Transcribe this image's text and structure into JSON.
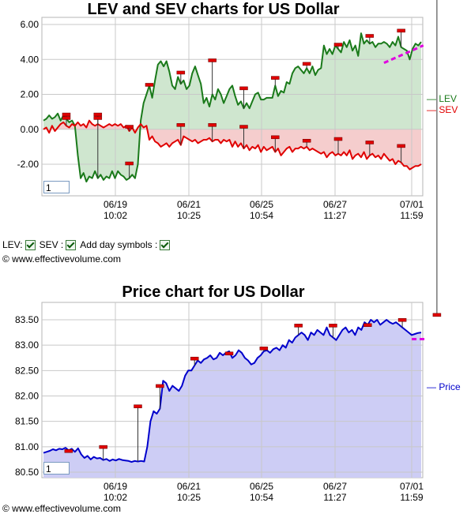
{
  "chart_data": [
    {
      "type": "line",
      "title": "LEV and SEV charts for US Dollar",
      "x_ticks": [
        {
          "date": "06/19",
          "time": "10:02"
        },
        {
          "date": "06/21",
          "time": "10:25"
        },
        {
          "date": "06/25",
          "time": "10:54"
        },
        {
          "date": "06/27",
          "time": "11:27"
        },
        {
          "date": "07/01",
          "time": "11:59"
        }
      ],
      "y_ticks": [
        "6.00",
        "4.00",
        "2.00",
        "0.00",
        "-2.00"
      ],
      "ylim": [
        -3.05,
        6.05
      ],
      "grid": true,
      "legend_position": "right",
      "series": [
        {
          "name": "LEV",
          "color": "#1a7a1a",
          "fill": "#cfe6cf",
          "values": [
            0.5,
            0.6,
            0.8,
            0.6,
            0.7,
            0.9,
            0.5,
            0.8,
            0.6,
            0.4,
            0.5,
            0.2,
            -1.5,
            -2.8,
            -2.5,
            -3.0,
            -2.7,
            -2.8,
            -2.4,
            -2.8,
            -2.6,
            -2.9,
            -2.7,
            -2.8,
            -2.4,
            -2.8,
            -2.4,
            -2.6,
            -2.7,
            -2.9,
            -2.8,
            -2.6,
            -2.8,
            -2.0,
            0.5,
            1.5,
            2.0,
            2.5,
            1.8,
            2.8,
            3.7,
            3.9,
            3.6,
            3.9,
            3.3,
            2.5,
            2.3,
            3.0,
            2.6,
            2.8,
            2.3,
            2.5,
            3.2,
            3.6,
            3.1,
            2.6,
            1.5,
            1.8,
            1.3,
            2.0,
            1.7,
            2.3,
            2.0,
            1.5,
            1.9,
            2.3,
            2.5,
            1.9,
            1.4,
            1.6,
            1.2,
            1.5,
            1.2,
            1.6,
            2.0,
            2.1,
            1.7,
            1.7,
            1.8,
            1.8,
            1.8,
            2.5,
            1.9,
            2.2,
            2.1,
            2.7,
            2.6,
            3.2,
            3.5,
            3.6,
            3.4,
            3.2,
            3.5,
            3.2,
            3.6,
            3.1,
            3.4,
            3.5,
            4.8,
            4.3,
            4.6,
            4.3,
            4.8,
            4.6,
            4.4,
            5.0,
            4.7,
            5.1,
            4.5,
            4.8,
            4.2,
            5.5,
            4.9,
            5.1,
            4.9,
            5.0,
            4.7,
            4.9,
            4.9,
            5.0,
            4.9,
            4.7,
            5.0,
            4.8,
            5.3,
            4.7,
            4.6,
            4.5,
            4.0,
            4.6,
            4.9,
            4.8,
            5.0
          ]
        },
        {
          "name": "SEV",
          "color": "#e00000",
          "fill": "#f5cdcd",
          "values": [
            0.0,
            0.1,
            -0.2,
            0.2,
            -0.1,
            0.1,
            0.3,
            0.4,
            0.2,
            0.1,
            0.3,
            0.2,
            0.4,
            0.2,
            0.3,
            0.1,
            0.5,
            0.3,
            0.2,
            0.3,
            0.2,
            0.1,
            0.2,
            0.3,
            0.2,
            0.3,
            0.2,
            0.3,
            0.1,
            0.2,
            -0.1,
            0.1,
            -0.2,
            0.1,
            0.3,
            0.1,
            0.2,
            -0.6,
            -0.4,
            -0.7,
            -0.8,
            -1.0,
            -0.9,
            -0.8,
            -1.0,
            -0.8,
            -0.7,
            -0.6,
            -0.9,
            -0.4,
            -0.5,
            -0.6,
            -0.7,
            -0.6,
            -0.8,
            -0.7,
            -0.6,
            -0.6,
            -0.5,
            -0.7,
            -0.6,
            -0.6,
            -0.8,
            -0.6,
            -0.7,
            -0.6,
            -1.0,
            -0.7,
            -1.0,
            -0.8,
            -1.1,
            -0.9,
            -1.2,
            -1.0,
            -1.1,
            -0.9,
            -1.3,
            -1.0,
            -1.2,
            -1.1,
            -1.0,
            -1.3,
            -1.1,
            -1.5,
            -1.3,
            -1.1,
            -1.0,
            -1.3,
            -1.1,
            -1.1,
            -1.0,
            -1.1,
            -1.0,
            -1.2,
            -1.1,
            -1.2,
            -1.3,
            -1.4,
            -1.3,
            -1.6,
            -1.4,
            -1.3,
            -1.5,
            -1.4,
            -1.5,
            -1.3,
            -1.5,
            -1.2,
            -1.7,
            -1.5,
            -1.4,
            -1.6,
            -1.3,
            -1.7,
            -1.5,
            -1.4,
            -1.6,
            -1.5,
            -1.7,
            -1.4,
            -1.6,
            -1.8,
            -1.7,
            -2.0,
            -1.8,
            -1.9,
            -2.1,
            -2.1,
            -2.3,
            -2.2,
            -2.1,
            -2.1,
            -2.0
          ]
        }
      ],
      "day_symbols_lev": [
        [
          8,
          0.8
        ],
        [
          19,
          0.8
        ],
        [
          30,
          -2.0
        ],
        [
          37,
          2.5
        ],
        [
          48,
          3.2
        ],
        [
          59,
          3.9
        ],
        [
          70,
          2.3
        ],
        [
          81,
          2.9
        ],
        [
          92,
          3.7
        ],
        [
          103,
          4.8
        ],
        [
          114,
          5.3
        ],
        [
          125,
          5.6
        ]
      ],
      "day_symbols_sev": [
        [
          8,
          0.6
        ],
        [
          19,
          0.6
        ],
        [
          30,
          0.1
        ],
        [
          48,
          0.2
        ],
        [
          59,
          0.2
        ],
        [
          70,
          0.1
        ],
        [
          81,
          -0.5
        ],
        [
          92,
          -0.7
        ],
        [
          103,
          -0.6
        ],
        [
          114,
          -0.8
        ],
        [
          125,
          -1.0
        ]
      ],
      "trend_marker_lev": {
        "from": [
          119,
          3.8
        ],
        "to": [
          130,
          4.8
        ]
      },
      "zoom_value": "1"
    },
    {
      "type": "line",
      "title": "Price chart for US Dollar",
      "x_ticks": [
        {
          "date": "06/19",
          "time": "10:02"
        },
        {
          "date": "06/21",
          "time": "10:25"
        },
        {
          "date": "06/25",
          "time": "10:54"
        },
        {
          "date": "06/27",
          "time": "11:27"
        },
        {
          "date": "07/01",
          "time": "11:59"
        }
      ],
      "y_ticks": [
        "83.50",
        "83.00",
        "82.50",
        "82.00",
        "81.50",
        "81.00",
        "80.50"
      ],
      "ylim": [
        80.42,
        83.62
      ],
      "grid": true,
      "legend_position": "right",
      "series": [
        {
          "name": "Price",
          "color": "#0000cc",
          "fill": "#cdcdf5",
          "values": [
            80.88,
            80.9,
            80.92,
            80.95,
            80.93,
            80.96,
            80.95,
            80.98,
            80.93,
            80.96,
            80.9,
            80.97,
            80.85,
            80.78,
            80.82,
            80.75,
            80.8,
            80.77,
            80.78,
            80.74,
            80.76,
            80.72,
            80.75,
            80.73,
            80.76,
            80.74,
            80.73,
            80.72,
            80.7,
            80.72,
            80.71,
            80.72,
            80.71,
            81.0,
            81.5,
            81.7,
            81.65,
            81.75,
            82.3,
            82.25,
            82.1,
            82.2,
            82.15,
            82.1,
            82.2,
            82.4,
            82.5,
            82.5,
            82.6,
            82.7,
            82.65,
            82.72,
            82.75,
            82.8,
            82.72,
            82.75,
            82.85,
            82.8,
            82.85,
            82.88,
            82.75,
            82.8,
            82.9,
            82.85,
            82.75,
            82.7,
            82.62,
            82.65,
            82.75,
            82.8,
            82.88,
            82.9,
            82.85,
            82.92,
            82.95,
            82.9,
            83.0,
            82.95,
            83.1,
            83.05,
            83.15,
            83.2,
            83.25,
            83.2,
            83.1,
            83.25,
            83.2,
            83.3,
            83.25,
            83.2,
            83.35,
            83.2,
            83.15,
            83.1,
            83.2,
            83.3,
            83.35,
            83.25,
            83.3,
            83.2,
            83.35,
            83.3,
            83.45,
            83.4,
            83.5,
            83.45,
            83.5,
            83.4,
            83.45,
            83.5,
            83.45,
            83.42,
            83.45,
            83.4,
            83.35,
            83.3,
            83.25,
            83.2,
            83.22,
            83.24,
            83.25
          ]
        }
      ],
      "day_symbols": [
        [
          8,
          80.9
        ],
        [
          19,
          80.98
        ],
        [
          30,
          81.78
        ],
        [
          37,
          82.18
        ],
        [
          48,
          82.72
        ],
        [
          59,
          82.82
        ],
        [
          70,
          82.92
        ],
        [
          81,
          83.37
        ],
        [
          92,
          83.37
        ],
        [
          103,
          83.38
        ],
        [
          114,
          83.48
        ],
        [
          125,
          83.58
        ]
      ],
      "trend_marker": {
        "from": [
          117,
          83.12
        ],
        "to": [
          126,
          83.12
        ]
      },
      "zoom_value": "1"
    }
  ],
  "legend": {
    "lev": "LEV",
    "sev": "SEV",
    "price": "Price"
  },
  "controls": {
    "lev_label": "LEV:",
    "sev_label": "SEV :",
    "day_symbols_label": "Add day symbols :"
  },
  "copyright_top": "© www.effectivevolume.com",
  "copyright_bottom": "© www.effectivevolume.com"
}
